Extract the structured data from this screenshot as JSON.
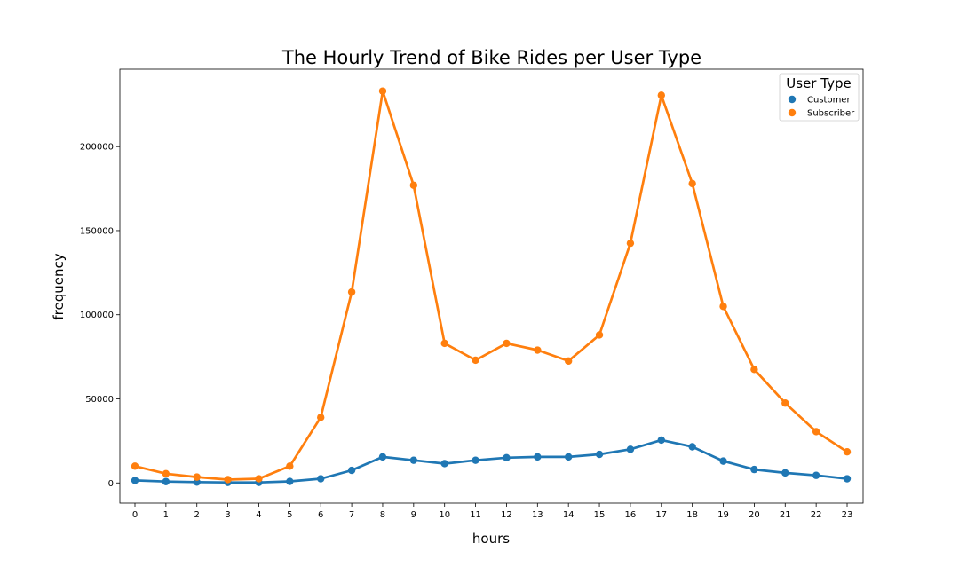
{
  "chart_data": {
    "type": "line",
    "title": "The Hourly Trend of Bike Rides per User Type",
    "xlabel": "hours",
    "ylabel": "frequency",
    "categories": [
      "0",
      "1",
      "2",
      "3",
      "4",
      "5",
      "6",
      "7",
      "8",
      "9",
      "10",
      "11",
      "12",
      "13",
      "14",
      "15",
      "16",
      "17",
      "18",
      "19",
      "20",
      "21",
      "22",
      "23"
    ],
    "yticks": [
      0,
      50000,
      100000,
      150000,
      200000
    ],
    "ylim": [
      -12000,
      246000
    ],
    "legend": {
      "title": "User Type",
      "position": "top-right"
    },
    "series": [
      {
        "name": "Customer",
        "color": "#1f77b4",
        "values": [
          1500,
          800,
          500,
          300,
          300,
          900,
          2500,
          7500,
          15500,
          13500,
          11500,
          13500,
          15000,
          15500,
          15500,
          17000,
          20000,
          25500,
          21500,
          13000,
          8000,
          6000,
          4500,
          2500
        ]
      },
      {
        "name": "Subscriber",
        "color": "#ff7f0e",
        "values": [
          10000,
          5500,
          3500,
          2000,
          2500,
          10000,
          39000,
          113500,
          233000,
          177000,
          83000,
          73000,
          83000,
          79000,
          72500,
          88000,
          142500,
          230500,
          178000,
          105000,
          67500,
          47500,
          30500,
          18500
        ]
      }
    ]
  }
}
